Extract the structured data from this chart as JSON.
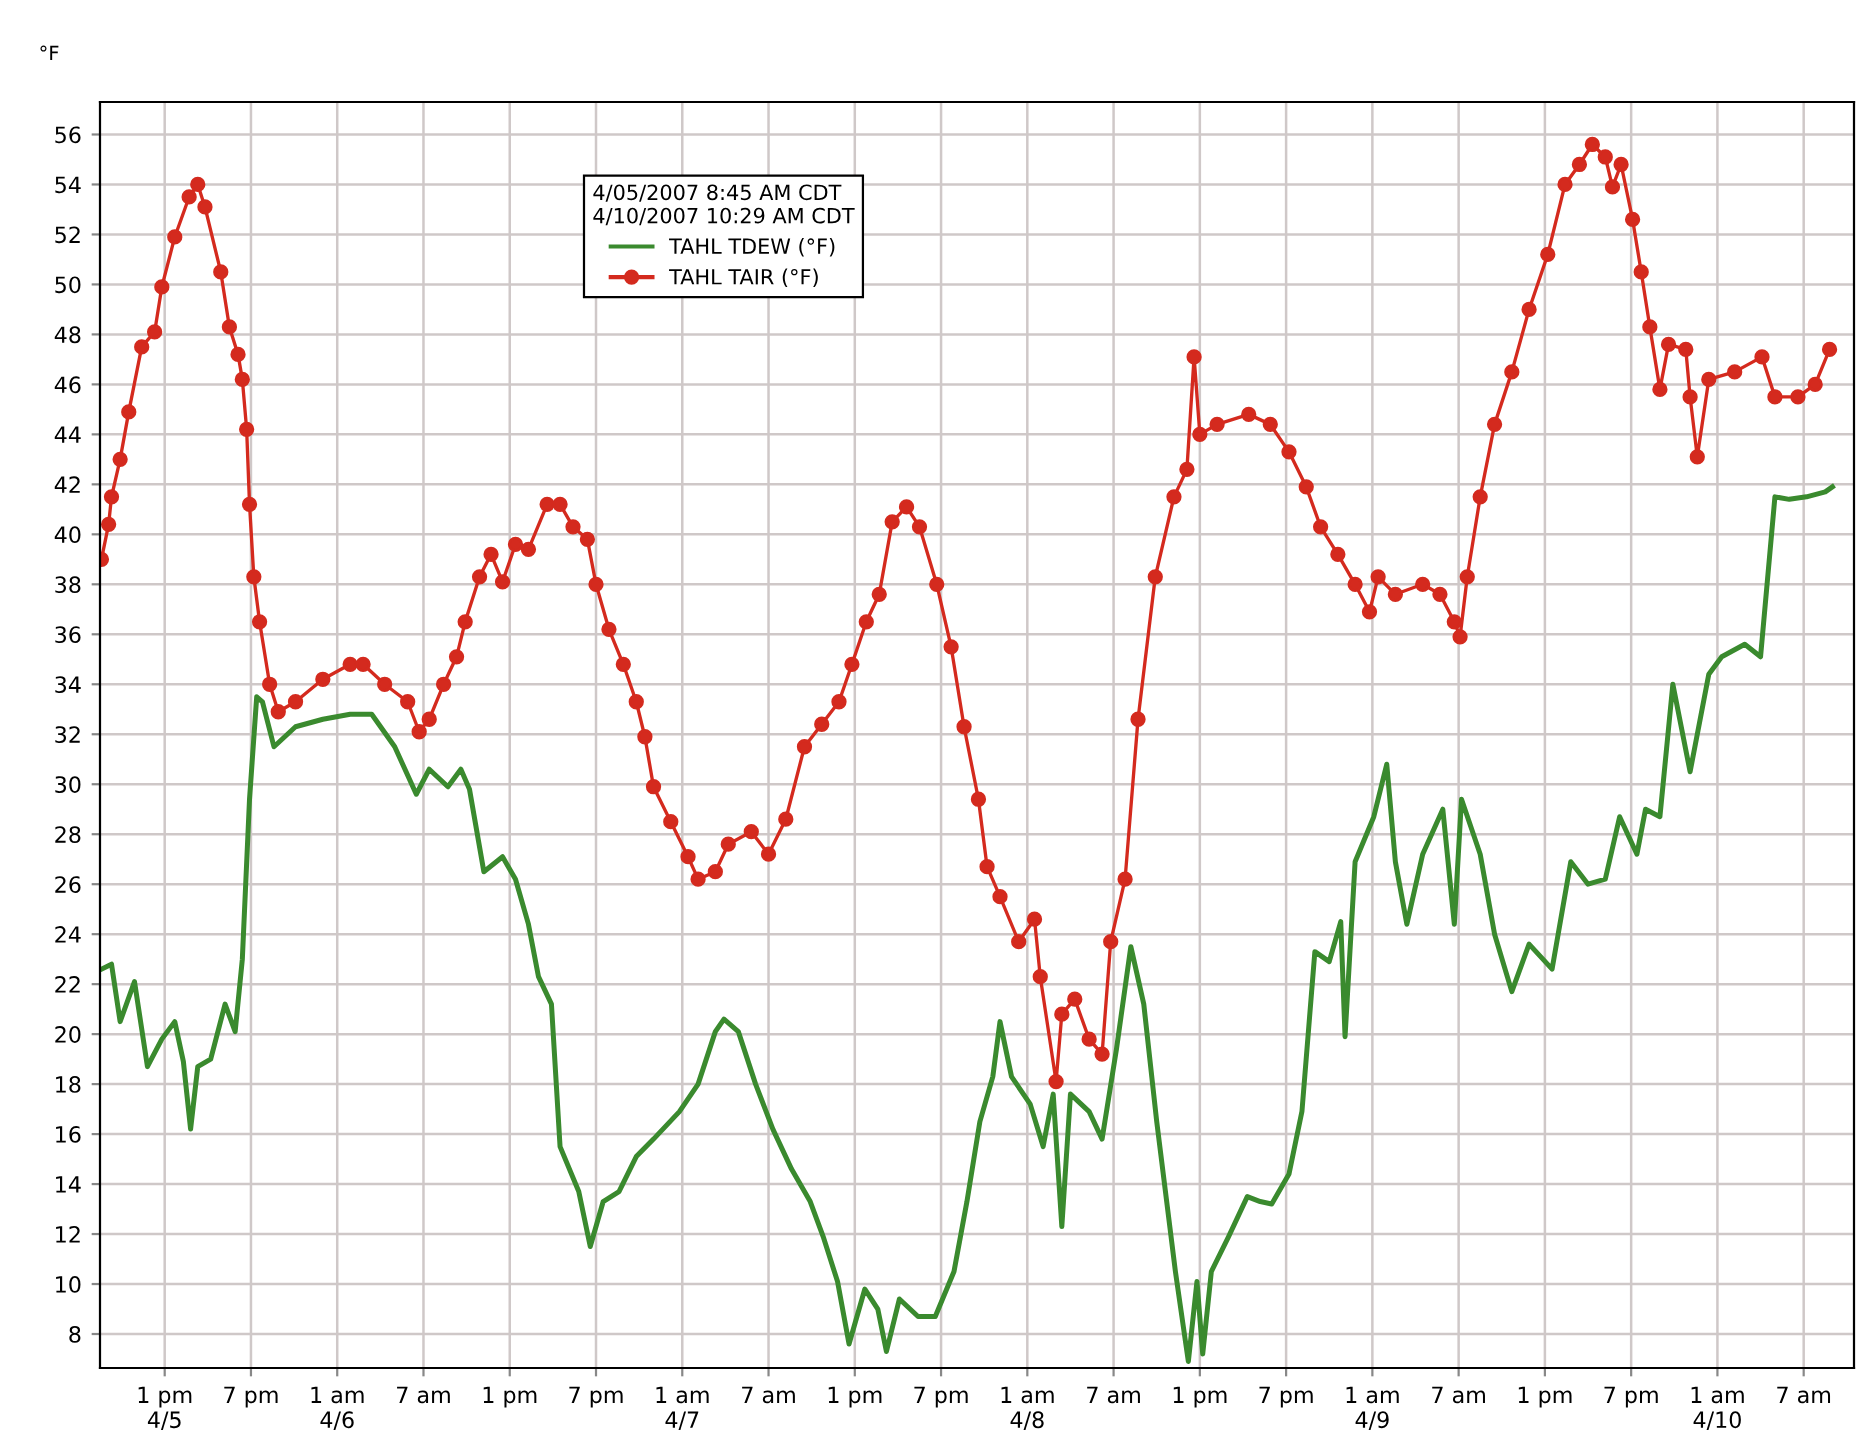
{
  "chart_data": {
    "type": "line",
    "legend_title": "4/05/2007 8:45 AM CDT\n4/10/2007 10:29 AM CDT",
    "ylabel": "°F",
    "xlim": [
      "2007-04-05T08:30",
      "2007-04-10T10:30"
    ],
    "ylim": [
      6.64,
      57.3
    ],
    "xticks": [
      {
        "value": "2007-04-05T13:00",
        "label": "1 pm\n4/5"
      },
      {
        "value": "2007-04-05T19:00",
        "label": "7 pm"
      },
      {
        "value": "2007-04-06T01:00",
        "label": "1 am\n4/6"
      },
      {
        "value": "2007-04-06T07:00",
        "label": "7 am"
      },
      {
        "value": "2007-04-06T13:00",
        "label": "1 pm"
      },
      {
        "value": "2007-04-06T19:00",
        "label": "7 pm"
      },
      {
        "value": "2007-04-07T01:00",
        "label": "1 am\n4/7"
      },
      {
        "value": "2007-04-07T07:00",
        "label": "7 am"
      },
      {
        "value": "2007-04-07T13:00",
        "label": "1 pm"
      },
      {
        "value": "2007-04-07T19:00",
        "label": "7 pm"
      },
      {
        "value": "2007-04-08T01:00",
        "label": "1 am\n4/8"
      },
      {
        "value": "2007-04-08T07:00",
        "label": "7 am"
      },
      {
        "value": "2007-04-08T13:00",
        "label": "1 pm"
      },
      {
        "value": "2007-04-08T19:00",
        "label": "7 pm"
      },
      {
        "value": "2007-04-09T01:00",
        "label": "1 am\n4/9"
      },
      {
        "value": "2007-04-09T07:00",
        "label": "7 am"
      },
      {
        "value": "2007-04-09T13:00",
        "label": "1 pm"
      },
      {
        "value": "2007-04-09T19:00",
        "label": "7 pm"
      },
      {
        "value": "2007-04-10T01:00",
        "label": "1 am\n4/10"
      },
      {
        "value": "2007-04-10T07:00",
        "label": "7 am"
      }
    ],
    "yticks": [
      8,
      10,
      12,
      14,
      16,
      18,
      20,
      22,
      24,
      26,
      28,
      30,
      32,
      34,
      36,
      38,
      40,
      42,
      44,
      46,
      48,
      50,
      52,
      54,
      56
    ],
    "grid": true,
    "legend": "top",
    "series": [
      {
        "name": "TAHL TDEW (°F)",
        "color": "#3a8a2e",
        "marker": "none",
        "x": [
          "2007-04-05T08:36",
          "2007-04-05T09:18",
          "2007-04-05T09:54",
          "2007-04-05T10:54",
          "2007-04-05T11:48",
          "2007-04-05T12:48",
          "2007-04-05T13:42",
          "2007-04-05T14:18",
          "2007-04-05T14:48",
          "2007-04-05T15:18",
          "2007-04-05T16:12",
          "2007-04-05T17:12",
          "2007-04-05T17:54",
          "2007-04-05T18:24",
          "2007-04-05T18:54",
          "2007-04-05T19:24",
          "2007-04-05T19:48",
          "2007-04-05T20:36",
          "2007-04-05T22:06",
          "2007-04-06T00:00",
          "2007-04-06T01:54",
          "2007-04-06T03:24",
          "2007-04-06T05:00",
          "2007-04-06T06:30",
          "2007-04-06T07:24",
          "2007-04-06T08:42",
          "2007-04-06T09:36",
          "2007-04-06T10:12",
          "2007-04-06T11:12",
          "2007-04-06T12:30",
          "2007-04-06T13:24",
          "2007-04-06T14:18",
          "2007-04-06T15:00",
          "2007-04-06T15:54",
          "2007-04-06T16:30",
          "2007-04-06T17:48",
          "2007-04-06T18:36",
          "2007-04-06T19:30",
          "2007-04-06T20:36",
          "2007-04-06T21:48",
          "2007-04-06T23:00",
          "2007-04-07T00:48",
          "2007-04-07T02:06",
          "2007-04-07T03:18",
          "2007-04-07T03:54",
          "2007-04-07T04:54",
          "2007-04-07T06:06",
          "2007-04-07T07:18",
          "2007-04-07T08:36",
          "2007-04-07T09:54",
          "2007-04-07T10:48",
          "2007-04-07T11:48",
          "2007-04-07T12:36",
          "2007-04-07T13:42",
          "2007-04-07T14:36",
          "2007-04-07T15:12",
          "2007-04-07T16:06",
          "2007-04-07T17:24",
          "2007-04-07T18:36",
          "2007-04-07T19:54",
          "2007-04-07T20:48",
          "2007-04-07T21:42",
          "2007-04-07T22:36",
          "2007-04-07T23:06",
          "2007-04-07T23:54",
          "2007-04-08T01:12",
          "2007-04-08T02:06",
          "2007-04-08T02:48",
          "2007-04-08T03:24",
          "2007-04-08T04:00",
          "2007-04-08T05:18",
          "2007-04-08T06:12",
          "2007-04-08T07:12",
          "2007-04-08T08:12",
          "2007-04-08T09:06",
          "2007-04-08T10:00",
          "2007-04-08T11:18",
          "2007-04-08T12:12",
          "2007-04-08T12:48",
          "2007-04-08T13:12",
          "2007-04-08T13:48",
          "2007-04-08T15:00",
          "2007-04-08T16:18",
          "2007-04-08T17:12",
          "2007-04-08T18:00",
          "2007-04-08T19:12",
          "2007-04-08T20:06",
          "2007-04-08T21:00",
          "2007-04-08T22:00",
          "2007-04-08T22:48",
          "2007-04-08T23:06",
          "2007-04-08T23:48",
          "2007-04-09T01:06",
          "2007-04-09T02:00",
          "2007-04-09T02:36",
          "2007-04-09T03:24",
          "2007-04-09T04:30",
          "2007-04-09T05:54",
          "2007-04-09T06:42",
          "2007-04-09T07:12",
          "2007-04-09T08:30",
          "2007-04-09T09:30",
          "2007-04-09T10:42",
          "2007-04-09T11:54",
          "2007-04-09T13:30",
          "2007-04-09T14:48",
          "2007-04-09T16:00",
          "2007-04-09T17:12",
          "2007-04-09T18:12",
          "2007-04-09T19:24",
          "2007-04-09T20:00",
          "2007-04-09T21:00",
          "2007-04-09T21:54",
          "2007-04-09T23:06",
          "2007-04-10T00:24",
          "2007-04-10T01:18",
          "2007-04-10T02:54",
          "2007-04-10T04:00",
          "2007-04-10T05:00",
          "2007-04-10T06:00",
          "2007-04-10T07:12",
          "2007-04-10T08:30",
          "2007-04-10T09:00"
        ],
        "values": [
          22.6,
          22.8,
          20.5,
          22.1,
          18.7,
          19.8,
          20.5,
          18.9,
          16.2,
          18.7,
          19.0,
          21.2,
          20.1,
          23.0,
          29.4,
          33.5,
          33.3,
          31.5,
          32.3,
          32.6,
          32.8,
          32.8,
          31.5,
          29.6,
          30.6,
          29.9,
          30.6,
          29.8,
          26.5,
          27.1,
          26.2,
          24.4,
          22.3,
          21.2,
          15.5,
          13.7,
          11.5,
          13.3,
          13.7,
          15.1,
          15.8,
          16.9,
          18.0,
          20.1,
          20.6,
          20.1,
          18.0,
          16.2,
          14.6,
          13.3,
          11.9,
          10.1,
          7.6,
          9.8,
          9.0,
          7.3,
          9.4,
          8.7,
          8.7,
          10.5,
          13.3,
          16.5,
          18.3,
          20.5,
          18.3,
          17.2,
          15.5,
          17.6,
          12.3,
          17.6,
          16.9,
          15.8,
          19.4,
          23.5,
          21.2,
          16.5,
          10.5,
          6.9,
          10.1,
          7.2,
          10.5,
          11.9,
          13.5,
          13.3,
          13.2,
          14.4,
          16.9,
          23.3,
          22.9,
          24.5,
          19.9,
          26.9,
          28.7,
          30.8,
          26.9,
          24.4,
          27.2,
          29.0,
          24.4,
          29.4,
          27.2,
          24.0,
          21.7,
          23.6,
          22.6,
          26.9,
          26.0,
          26.2,
          28.7,
          27.2,
          29.0,
          28.7,
          34.0,
          30.5,
          34.4,
          35.1,
          35.6,
          35.1,
          41.5,
          41.4,
          41.5,
          41.7,
          41.9
        ]
      },
      {
        "name": "TAHL TAIR (°F)",
        "color": "#d42a1e",
        "marker": "circle",
        "x": [
          "2007-04-05T08:36",
          "2007-04-05T09:06",
          "2007-04-05T09:18",
          "2007-04-05T09:54",
          "2007-04-05T10:30",
          "2007-04-05T11:24",
          "2007-04-05T12:18",
          "2007-04-05T12:48",
          "2007-04-05T13:42",
          "2007-04-05T14:42",
          "2007-04-05T15:18",
          "2007-04-05T15:48",
          "2007-04-05T16:54",
          "2007-04-05T17:30",
          "2007-04-05T18:06",
          "2007-04-05T18:24",
          "2007-04-05T18:42",
          "2007-04-05T18:54",
          "2007-04-05T19:12",
          "2007-04-05T19:36",
          "2007-04-05T20:18",
          "2007-04-05T20:54",
          "2007-04-05T22:06",
          "2007-04-06T00:00",
          "2007-04-06T01:54",
          "2007-04-06T02:48",
          "2007-04-06T04:18",
          "2007-04-06T05:54",
          "2007-04-06T06:42",
          "2007-04-06T07:24",
          "2007-04-06T08:24",
          "2007-04-06T09:18",
          "2007-04-06T09:54",
          "2007-04-06T10:54",
          "2007-04-06T11:42",
          "2007-04-06T12:30",
          "2007-04-06T13:24",
          "2007-04-06T14:18",
          "2007-04-06T15:36",
          "2007-04-06T16:30",
          "2007-04-06T17:24",
          "2007-04-06T18:24",
          "2007-04-06T19:00",
          "2007-04-06T19:54",
          "2007-04-06T20:54",
          "2007-04-06T21:48",
          "2007-04-06T22:24",
          "2007-04-06T23:00",
          "2007-04-07T00:12",
          "2007-04-07T01:24",
          "2007-04-07T02:06",
          "2007-04-07T03:18",
          "2007-04-07T04:12",
          "2007-04-07T05:48",
          "2007-04-07T07:00",
          "2007-04-07T08:12",
          "2007-04-07T09:30",
          "2007-04-07T10:42",
          "2007-04-07T11:54",
          "2007-04-07T12:48",
          "2007-04-07T13:48",
          "2007-04-07T14:42",
          "2007-04-07T15:36",
          "2007-04-07T16:36",
          "2007-04-07T17:30",
          "2007-04-07T18:42",
          "2007-04-07T19:42",
          "2007-04-07T20:36",
          "2007-04-07T21:36",
          "2007-04-07T22:12",
          "2007-04-07T23:06",
          "2007-04-08T00:24",
          "2007-04-08T01:30",
          "2007-04-08T01:54",
          "2007-04-08T03:00",
          "2007-04-08T03:24",
          "2007-04-08T04:18",
          "2007-04-08T05:18",
          "2007-04-08T06:12",
          "2007-04-08T06:48",
          "2007-04-08T07:48",
          "2007-04-08T08:42",
          "2007-04-08T09:54",
          "2007-04-08T11:12",
          "2007-04-08T12:06",
          "2007-04-08T12:36",
          "2007-04-08T13:00",
          "2007-04-08T14:12",
          "2007-04-08T16:24",
          "2007-04-08T17:54",
          "2007-04-08T19:12",
          "2007-04-08T20:24",
          "2007-04-08T21:24",
          "2007-04-08T22:36",
          "2007-04-08T23:48",
          "2007-04-09T00:48",
          "2007-04-09T01:24",
          "2007-04-09T02:36",
          "2007-04-09T04:30",
          "2007-04-09T05:42",
          "2007-04-09T06:42",
          "2007-04-09T07:06",
          "2007-04-09T07:36",
          "2007-04-09T08:30",
          "2007-04-09T09:30",
          "2007-04-09T10:42",
          "2007-04-09T11:54",
          "2007-04-09T13:12",
          "2007-04-09T14:24",
          "2007-04-09T15:24",
          "2007-04-09T16:18",
          "2007-04-09T17:12",
          "2007-04-09T17:42",
          "2007-04-09T18:18",
          "2007-04-09T19:06",
          "2007-04-09T19:42",
          "2007-04-09T20:18",
          "2007-04-09T21:00",
          "2007-04-09T21:36",
          "2007-04-09T22:48",
          "2007-04-09T23:06",
          "2007-04-09T23:36",
          "2007-04-10T00:24",
          "2007-04-10T02:12",
          "2007-04-10T04:06",
          "2007-04-10T05:00",
          "2007-04-10T06:36",
          "2007-04-10T07:48",
          "2007-04-10T08:48"
        ],
        "values": [
          39.0,
          40.4,
          41.5,
          43.0,
          44.9,
          47.5,
          48.1,
          49.9,
          51.9,
          53.5,
          54.0,
          53.1,
          50.5,
          48.3,
          47.2,
          46.2,
          44.2,
          41.2,
          38.3,
          36.5,
          34.0,
          32.9,
          33.3,
          34.2,
          34.8,
          34.8,
          34.0,
          33.3,
          32.1,
          32.6,
          34.0,
          35.1,
          36.5,
          38.3,
          39.2,
          38.1,
          39.6,
          39.4,
          41.2,
          41.2,
          40.3,
          39.8,
          38.0,
          36.2,
          34.8,
          33.3,
          31.9,
          29.9,
          28.5,
          27.1,
          26.2,
          26.5,
          27.6,
          28.1,
          27.2,
          28.6,
          31.5,
          32.4,
          33.3,
          34.8,
          36.5,
          37.6,
          40.5,
          41.1,
          40.3,
          38.0,
          35.5,
          32.3,
          29.4,
          26.7,
          25.5,
          23.7,
          24.6,
          22.3,
          18.1,
          20.8,
          21.4,
          19.8,
          19.2,
          23.7,
          26.2,
          32.6,
          38.3,
          41.5,
          42.6,
          47.1,
          44.0,
          44.4,
          44.8,
          44.4,
          43.3,
          41.9,
          40.3,
          39.2,
          38.0,
          36.9,
          38.3,
          37.6,
          38.0,
          37.6,
          36.5,
          35.9,
          38.3,
          41.5,
          44.4,
          46.5,
          49.0,
          51.2,
          54.0,
          54.8,
          55.6,
          55.1,
          53.9,
          54.8,
          52.6,
          50.5,
          48.3,
          45.8,
          47.6,
          47.4,
          45.5,
          43.1,
          46.2,
          46.5,
          47.1,
          45.5,
          45.5,
          46.0,
          47.4
        ]
      }
    ]
  }
}
